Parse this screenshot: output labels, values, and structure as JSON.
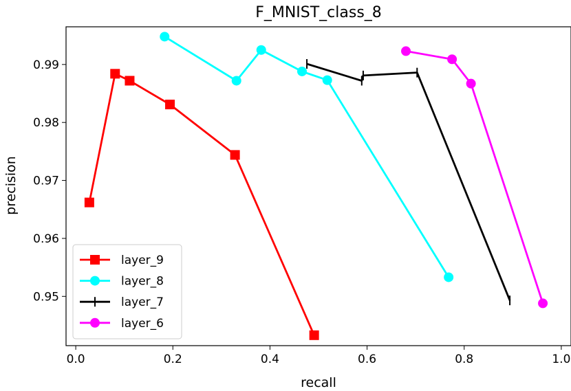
{
  "chart_data": {
    "type": "line",
    "title": "F_MNIST_class_8",
    "xlabel": "recall",
    "ylabel": "precision",
    "xlim": [
      -0.02,
      1.02
    ],
    "ylim": [
      0.9415,
      0.9965
    ],
    "xticks": [
      0.0,
      0.2,
      0.4,
      0.6,
      0.8,
      1.0
    ],
    "xtick_labels": [
      "0.0",
      "0.2",
      "0.4",
      "0.6",
      "0.8",
      "1.0"
    ],
    "yticks": [
      0.95,
      0.96,
      0.97,
      0.98,
      0.99
    ],
    "ytick_labels": [
      "0.95",
      "0.96",
      "0.97",
      "0.98",
      "0.99"
    ],
    "grid": false,
    "legend_position": "lower-left",
    "series": [
      {
        "name": "layer_9",
        "color": "#ff0000",
        "marker": "square",
        "x": [
          0.028,
          0.081,
          0.111,
          0.194,
          0.328,
          0.491
        ],
        "y": [
          0.9662,
          0.9884,
          0.9872,
          0.9831,
          0.9744,
          0.9433
        ]
      },
      {
        "name": "layer_8",
        "color": "#00ffff",
        "marker": "circle",
        "x": [
          0.183,
          0.331,
          0.382,
          0.466,
          0.518,
          0.768
        ],
        "y": [
          0.9948,
          0.9872,
          0.9925,
          0.9888,
          0.9873,
          0.9533
        ]
      },
      {
        "name": "layer_7",
        "color": "#000000",
        "marker": "vline",
        "x": [
          0.476,
          0.589,
          0.592,
          0.703,
          0.894
        ],
        "y": [
          0.9901,
          0.9872,
          0.9881,
          0.9886,
          0.9493
        ]
      },
      {
        "name": "layer_6",
        "color": "#ff00ff",
        "marker": "circle",
        "x": [
          0.68,
          0.775,
          0.814,
          0.962
        ],
        "y": [
          0.9923,
          0.9909,
          0.9867,
          0.9488
        ]
      }
    ]
  }
}
